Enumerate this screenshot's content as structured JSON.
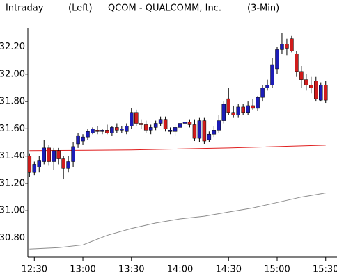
{
  "chart_data": {
    "type": "candlestick",
    "header": [
      "Intraday",
      "(Left)",
      "QCOM - QUALCOMM, Inc.",
      "(3-Min)"
    ],
    "x": [
      "12:27",
      "12:30",
      "12:33",
      "12:36",
      "12:39",
      "12:42",
      "12:45",
      "12:48",
      "12:51",
      "12:54",
      "12:57",
      "13:00",
      "13:03",
      "13:06",
      "13:09",
      "13:12",
      "13:15",
      "13:18",
      "13:21",
      "13:24",
      "13:27",
      "13:30",
      "13:33",
      "13:36",
      "13:39",
      "13:42",
      "13:45",
      "13:48",
      "13:51",
      "13:54",
      "13:57",
      "14:00",
      "14:03",
      "14:06",
      "14:09",
      "14:12",
      "14:15",
      "14:18",
      "14:21",
      "14:24",
      "14:27",
      "14:30",
      "14:33",
      "14:36",
      "14:39",
      "14:42",
      "14:45",
      "14:48",
      "14:51",
      "14:54",
      "14:57",
      "15:00",
      "15:03",
      "15:06",
      "15:09",
      "15:12",
      "15:15",
      "15:18",
      "15:21",
      "15:24",
      "15:27",
      "15:30"
    ],
    "open": [
      31.4,
      31.28,
      31.32,
      31.36,
      31.46,
      31.36,
      31.44,
      31.38,
      31.31,
      31.36,
      31.49,
      31.51,
      31.54,
      31.57,
      31.59,
      31.58,
      31.59,
      31.57,
      31.61,
      31.59,
      31.58,
      31.62,
      31.72,
      31.64,
      31.63,
      31.59,
      31.61,
      31.64,
      31.67,
      31.58,
      31.58,
      31.61,
      31.64,
      31.65,
      31.63,
      31.53,
      31.66,
      31.52,
      31.56,
      31.59,
      31.66,
      31.82,
      31.72,
      31.7,
      31.76,
      31.72,
      31.77,
      31.75,
      31.83,
      31.9,
      31.92,
      32.04,
      32.18,
      32.22,
      32.26,
      32.15,
      32.02,
      31.96,
      31.92,
      31.95,
      31.81,
      31.92
    ],
    "high": [
      31.42,
      31.36,
      31.4,
      31.52,
      31.48,
      31.46,
      31.46,
      31.4,
      31.4,
      31.5,
      31.57,
      31.56,
      31.6,
      31.61,
      31.62,
      31.6,
      31.63,
      31.62,
      31.64,
      31.62,
      31.64,
      31.75,
      31.74,
      31.67,
      31.66,
      31.63,
      31.66,
      31.69,
      31.69,
      31.61,
      31.63,
      31.66,
      31.67,
      31.67,
      31.67,
      31.68,
      31.68,
      31.58,
      31.62,
      31.7,
      31.8,
      31.9,
      31.77,
      31.78,
      31.78,
      31.8,
      31.82,
      31.84,
      31.92,
      31.96,
      32.12,
      32.2,
      32.3,
      32.26,
      32.28,
      32.17,
      32.06,
      32.0,
      31.98,
      31.98,
      31.94,
      31.95
    ],
    "low": [
      31.25,
      31.26,
      31.28,
      31.34,
      31.33,
      31.3,
      31.34,
      31.23,
      31.28,
      31.32,
      31.46,
      31.48,
      31.52,
      31.56,
      31.56,
      31.56,
      31.56,
      31.55,
      31.57,
      31.57,
      31.56,
      31.6,
      31.62,
      31.6,
      31.57,
      31.56,
      31.59,
      31.62,
      31.58,
      31.56,
      31.55,
      31.58,
      31.62,
      31.61,
      31.51,
      31.5,
      31.49,
      31.5,
      31.54,
      31.57,
      31.64,
      31.7,
      31.68,
      31.68,
      31.7,
      31.7,
      31.74,
      31.73,
      31.8,
      31.88,
      31.9,
      32.0,
      32.15,
      32.14,
      32.16,
      31.98,
      31.9,
      31.88,
      31.86,
      31.8,
      31.8,
      31.79
    ],
    "close": [
      31.28,
      31.34,
      31.37,
      31.46,
      31.36,
      31.44,
      31.38,
      31.31,
      31.36,
      31.47,
      31.55,
      31.54,
      31.58,
      31.6,
      31.58,
      31.59,
      31.57,
      31.61,
      31.59,
      31.6,
      31.62,
      31.72,
      31.64,
      31.63,
      31.59,
      31.61,
      31.64,
      31.67,
      31.6,
      31.59,
      31.61,
      31.64,
      31.65,
      31.63,
      31.53,
      31.66,
      31.51,
      31.56,
      31.59,
      31.66,
      31.78,
      31.72,
      31.7,
      31.76,
      31.72,
      31.77,
      31.75,
      31.83,
      31.9,
      31.92,
      32.07,
      32.18,
      32.22,
      32.19,
      32.17,
      32.02,
      31.96,
      31.92,
      31.9,
      31.82,
      31.92,
      31.81
    ],
    "up_color": "#1c1cb8",
    "down_color": "#d01c1c",
    "overlays": [
      {
        "color": "#e02020",
        "x": [
          "12:27",
          "13:30",
          "14:30",
          "15:30"
        ],
        "values": [
          31.44,
          31.445,
          31.46,
          31.48
        ]
      },
      {
        "color": "#8c8c8c",
        "x": [
          "12:27",
          "12:45",
          "13:00",
          "13:15",
          "13:30",
          "13:45",
          "14:00",
          "14:15",
          "14:30",
          "14:45",
          "15:00",
          "15:15",
          "15:30"
        ],
        "values": [
          30.72,
          30.73,
          30.75,
          30.82,
          30.87,
          30.91,
          30.94,
          30.96,
          30.99,
          31.02,
          31.06,
          31.1,
          31.13
        ]
      }
    ],
    "xlim": [
      "12:26",
      "15:37"
    ],
    "xticks": [
      "12:30",
      "13:00",
      "13:30",
      "14:00",
      "14:30",
      "15:00",
      "15:30"
    ],
    "ylim": [
      30.66,
      32.34
    ],
    "yticks": [
      {
        "value": 30.8,
        "label": "30.80"
      },
      {
        "value": 31,
        "label": "31.00"
      },
      {
        "value": 31.2,
        "label": "31.20"
      },
      {
        "value": 31.4,
        "label": "31.40"
      },
      {
        "value": 31.6,
        "label": "31.60"
      },
      {
        "value": 31.8,
        "label": "31.80"
      },
      {
        "value": 32,
        "label": "32.00"
      },
      {
        "value": 32.2,
        "label": "32.20"
      }
    ],
    "grid": false
  }
}
